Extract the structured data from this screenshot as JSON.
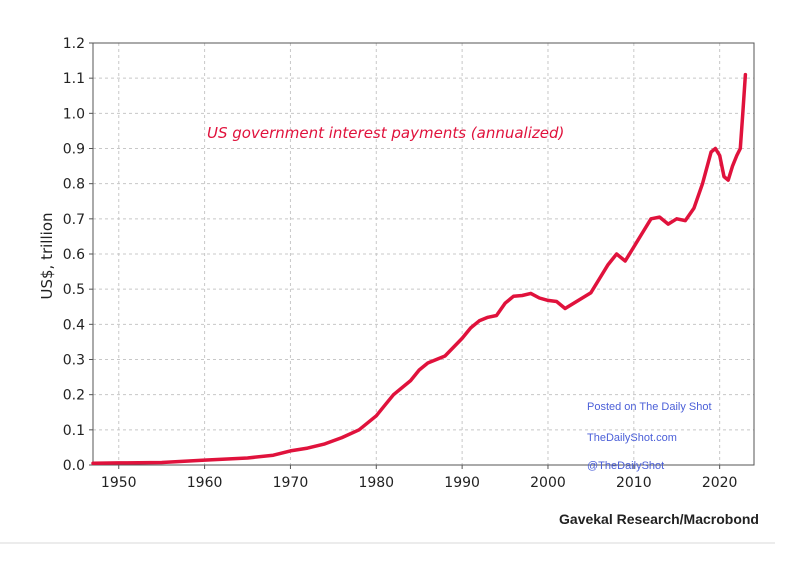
{
  "chart_data": {
    "type": "line",
    "title": "US government interest payments (annualized)",
    "ylabel": "US$, trillion",
    "xlabel": "",
    "xlim": [
      1947,
      2024
    ],
    "ylim": [
      0,
      1.2
    ],
    "x_ticks": [
      "1950",
      "1960",
      "1970",
      "1980",
      "1990",
      "2000",
      "2010",
      "2020"
    ],
    "y_ticks": [
      "0.0",
      "0.1",
      "0.2",
      "0.3",
      "0.4",
      "0.5",
      "0.6",
      "0.7",
      "0.8",
      "0.9",
      "1.0",
      "1.1",
      "1.2"
    ],
    "grid": true,
    "series": [
      {
        "color": "#e0123c",
        "points": [
          [
            1947,
            0.005
          ],
          [
            1950,
            0.006
          ],
          [
            1955,
            0.007
          ],
          [
            1960,
            0.014
          ],
          [
            1965,
            0.02
          ],
          [
            1968,
            0.028
          ],
          [
            1970,
            0.04
          ],
          [
            1972,
            0.048
          ],
          [
            1974,
            0.06
          ],
          [
            1976,
            0.078
          ],
          [
            1978,
            0.1
          ],
          [
            1980,
            0.14
          ],
          [
            1981,
            0.17
          ],
          [
            1982,
            0.2
          ],
          [
            1984,
            0.24
          ],
          [
            1985,
            0.27
          ],
          [
            1986,
            0.29
          ],
          [
            1988,
            0.31
          ],
          [
            1990,
            0.36
          ],
          [
            1991,
            0.39
          ],
          [
            1992,
            0.41
          ],
          [
            1993,
            0.42
          ],
          [
            1994,
            0.425
          ],
          [
            1995,
            0.46
          ],
          [
            1996,
            0.48
          ],
          [
            1997,
            0.482
          ],
          [
            1998,
            0.488
          ],
          [
            1999,
            0.475
          ],
          [
            2000,
            0.468
          ],
          [
            2001,
            0.465
          ],
          [
            2002,
            0.445
          ],
          [
            2003,
            0.46
          ],
          [
            2004,
            0.475
          ],
          [
            2005,
            0.49
          ],
          [
            2006,
            0.53
          ],
          [
            2007,
            0.57
          ],
          [
            2008,
            0.6
          ],
          [
            2009,
            0.58
          ],
          [
            2010,
            0.62
          ],
          [
            2011,
            0.66
          ],
          [
            2012,
            0.7
          ],
          [
            2013,
            0.705
          ],
          [
            2014,
            0.685
          ],
          [
            2015,
            0.7
          ],
          [
            2016,
            0.695
          ],
          [
            2017,
            0.73
          ],
          [
            2018,
            0.8
          ],
          [
            2019,
            0.89
          ],
          [
            2019.5,
            0.9
          ],
          [
            2020,
            0.88
          ],
          [
            2020.5,
            0.82
          ],
          [
            2021,
            0.81
          ],
          [
            2021.5,
            0.85
          ],
          [
            2022,
            0.88
          ],
          [
            2022.4,
            0.9
          ],
          [
            2022.7,
            1.0
          ],
          [
            2023,
            1.11
          ]
        ]
      }
    ]
  },
  "source_label": "Gavekal Research/Macrobond",
  "watermark": {
    "line1": "Posted on The Daily Shot",
    "line2": "TheDailyShot.com",
    "line3": "@TheDailyShot"
  }
}
